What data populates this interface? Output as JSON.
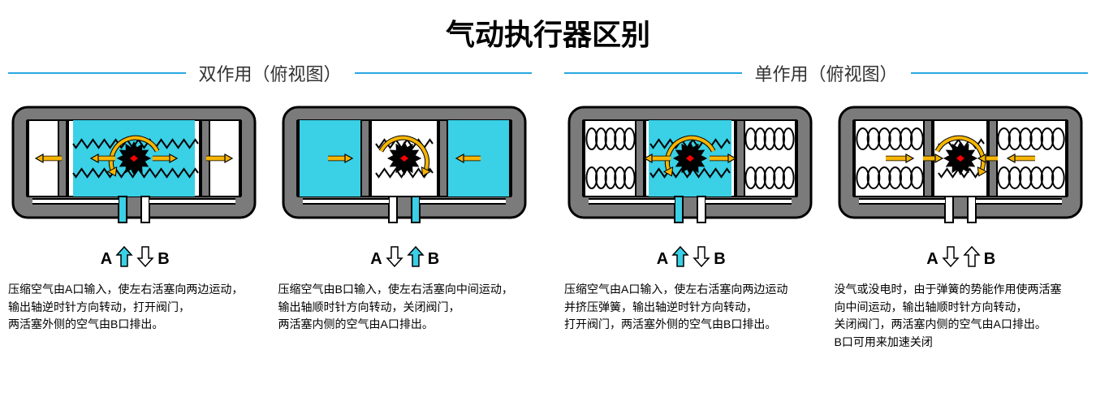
{
  "title": "气动执行器区别",
  "accent_color": "#29a8e1",
  "body_fill": "#7b7b7b",
  "body_stroke": "#000000",
  "air_color": "#3ad0e6",
  "gear_color": "#000000",
  "gear_mark": "#ff0000",
  "arrow_color": "#f7b500",
  "arrow_stroke": "#000000",
  "spring_color": "#ffffff",
  "sections": [
    {
      "label": "双作用（俯视图）",
      "panels": [
        {
          "variant": "double_A",
          "port_A_label": "A",
          "port_B_label": "B",
          "port_A_filled": true,
          "port_B_filled": false,
          "desc": "压缩空气由A口输入，使左右活塞向两边运动，\n输出轴逆时针方向转动，打开阀门，\n两活塞外侧的空气由B口排出。"
        },
        {
          "variant": "double_B",
          "port_A_label": "A",
          "port_B_label": "B",
          "port_A_filled": false,
          "port_B_filled": true,
          "desc": "压缩空气由B口输入，使左右活塞向中间运动，\n输出轴顺时针方向转动，关闭阀门，\n两活塞内侧的空气由A口排出。"
        }
      ]
    },
    {
      "label": "单作用（俯视图）",
      "panels": [
        {
          "variant": "single_A",
          "port_A_label": "A",
          "port_B_label": "B",
          "port_A_filled": true,
          "port_B_filled": false,
          "desc": "压缩空气由A口输入，使左右活塞向两边运动\n并挤压弹簧，输出轴逆时针方向转动，\n打开阀门，两活塞外侧的空气由B口排出。"
        },
        {
          "variant": "single_spring",
          "port_A_label": "A",
          "port_B_label": "B",
          "port_A_filled": false,
          "port_B_filled": false,
          "desc": "没气或没电时，由于弹簧的势能作用使两活塞\n向中间运动，输出轴顺时针方向转动，\n关闭阀门，两活塞内侧的空气由A口排出。\nB口可用来加速关闭"
        }
      ]
    }
  ]
}
